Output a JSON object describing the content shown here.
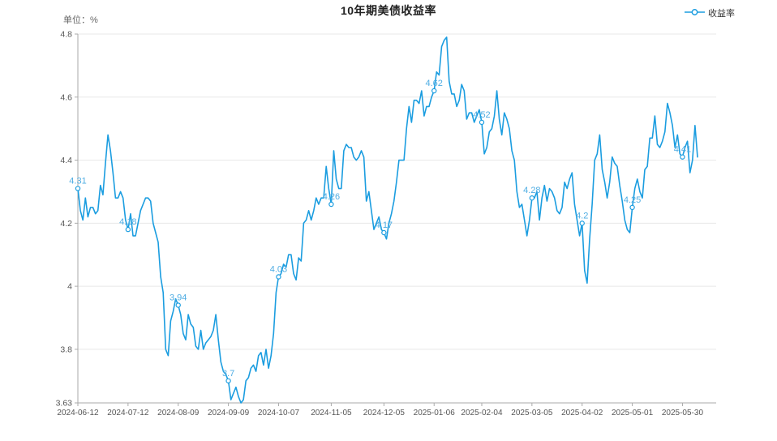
{
  "header": {
    "title": "10年期美债收益率",
    "unit_label": "单位：%",
    "legend": {
      "label": "收益率"
    }
  },
  "chart_data": {
    "type": "line",
    "title": "10年期美债收益率",
    "unit": "%",
    "series_name": "收益率",
    "line_color": "#1b9de0",
    "point_label_color": "#4fadе3",
    "label_color": "#4fade3",
    "axis_text_color": "#555555",
    "grid_color": "#e8e8e8",
    "axis_line_color": "#aaaaaa",
    "ylim": [
      3.63,
      4.8
    ],
    "y_ticks": [
      "3.63",
      "3.8",
      "4",
      "4.2",
      "4.4",
      "4.6",
      "4.8"
    ],
    "x_ticks": [
      "2024-06-12",
      "2024-07-12",
      "2024-08-09",
      "2024-09-09",
      "2024-10-07",
      "2024-11-05",
      "2024-12-05",
      "2025-01-06",
      "2025-02-04",
      "2025-03-05",
      "2025-04-02",
      "2025-05-01",
      "2025-05-30"
    ],
    "marked_points": [
      {
        "date": "2024-06-12",
        "label": "4.31",
        "value": 4.31
      },
      {
        "date": "2024-07-12",
        "label": "4.18",
        "value": 4.18
      },
      {
        "date": "2024-08-09",
        "label": "3.94",
        "value": 3.94
      },
      {
        "date": "2024-09-09",
        "label": "3.7",
        "value": 3.7
      },
      {
        "date": "2024-10-07",
        "label": "4.03",
        "value": 4.03
      },
      {
        "date": "2024-11-05",
        "label": "4.26",
        "value": 4.26
      },
      {
        "date": "2024-12-05",
        "label": "4.17",
        "value": 4.17
      },
      {
        "date": "2025-01-06",
        "label": "4.62",
        "value": 4.62
      },
      {
        "date": "2025-02-04",
        "label": "4.52",
        "value": 4.52
      },
      {
        "date": "2025-03-05",
        "label": "4.28",
        "value": 4.28
      },
      {
        "date": "2025-04-02",
        "label": "4.2",
        "value": 4.2
      },
      {
        "date": "2025-05-01",
        "label": "4.25",
        "value": 4.25
      },
      {
        "date": "2025-05-30",
        "label": "4.41",
        "value": 4.41
      }
    ],
    "points": [
      [
        "2024-06-12",
        4.31
      ],
      [
        "2024-06-13",
        4.24
      ],
      [
        "2024-06-14",
        4.21
      ],
      [
        "2024-06-17",
        4.28
      ],
      [
        "2024-06-18",
        4.22
      ],
      [
        "2024-06-20",
        4.25
      ],
      [
        "2024-06-21",
        4.25
      ],
      [
        "2024-06-24",
        4.23
      ],
      [
        "2024-06-25",
        4.24
      ],
      [
        "2024-06-26",
        4.32
      ],
      [
        "2024-06-27",
        4.29
      ],
      [
        "2024-06-28",
        4.39
      ],
      [
        "2024-07-01",
        4.48
      ],
      [
        "2024-07-02",
        4.43
      ],
      [
        "2024-07-03",
        4.36
      ],
      [
        "2024-07-05",
        4.28
      ],
      [
        "2024-07-08",
        4.28
      ],
      [
        "2024-07-09",
        4.3
      ],
      [
        "2024-07-10",
        4.28
      ],
      [
        "2024-07-11",
        4.21
      ],
      [
        "2024-07-12",
        4.18
      ],
      [
        "2024-07-15",
        4.23
      ],
      [
        "2024-07-16",
        4.16
      ],
      [
        "2024-07-17",
        4.16
      ],
      [
        "2024-07-18",
        4.2
      ],
      [
        "2024-07-19",
        4.24
      ],
      [
        "2024-07-22",
        4.26
      ],
      [
        "2024-07-23",
        4.28
      ],
      [
        "2024-07-24",
        4.28
      ],
      [
        "2024-07-25",
        4.27
      ],
      [
        "2024-07-26",
        4.2
      ],
      [
        "2024-07-29",
        4.17
      ],
      [
        "2024-07-30",
        4.14
      ],
      [
        "2024-07-31",
        4.03
      ],
      [
        "2024-08-01",
        3.98
      ],
      [
        "2024-08-02",
        3.8
      ],
      [
        "2024-08-05",
        3.78
      ],
      [
        "2024-08-06",
        3.89
      ],
      [
        "2024-08-07",
        3.92
      ],
      [
        "2024-08-08",
        3.96
      ],
      [
        "2024-08-09",
        3.94
      ],
      [
        "2024-08-12",
        3.91
      ],
      [
        "2024-08-13",
        3.85
      ],
      [
        "2024-08-14",
        3.83
      ],
      [
        "2024-08-15",
        3.91
      ],
      [
        "2024-08-16",
        3.88
      ],
      [
        "2024-08-19",
        3.87
      ],
      [
        "2024-08-20",
        3.81
      ],
      [
        "2024-08-21",
        3.8
      ],
      [
        "2024-08-22",
        3.86
      ],
      [
        "2024-08-23",
        3.8
      ],
      [
        "2024-08-26",
        3.82
      ],
      [
        "2024-08-27",
        3.83
      ],
      [
        "2024-08-28",
        3.84
      ],
      [
        "2024-08-29",
        3.86
      ],
      [
        "2024-08-30",
        3.91
      ],
      [
        "2024-09-03",
        3.83
      ],
      [
        "2024-09-04",
        3.76
      ],
      [
        "2024-09-05",
        3.73
      ],
      [
        "2024-09-06",
        3.72
      ],
      [
        "2024-09-09",
        3.7
      ],
      [
        "2024-09-10",
        3.64
      ],
      [
        "2024-09-11",
        3.66
      ],
      [
        "2024-09-12",
        3.68
      ],
      [
        "2024-09-13",
        3.65
      ],
      [
        "2024-09-16",
        3.63
      ],
      [
        "2024-09-17",
        3.64
      ],
      [
        "2024-09-18",
        3.7
      ],
      [
        "2024-09-19",
        3.71
      ],
      [
        "2024-09-20",
        3.74
      ],
      [
        "2024-09-23",
        3.75
      ],
      [
        "2024-09-24",
        3.73
      ],
      [
        "2024-09-25",
        3.78
      ],
      [
        "2024-09-26",
        3.79
      ],
      [
        "2024-09-27",
        3.75
      ],
      [
        "2024-09-30",
        3.8
      ],
      [
        "2024-10-01",
        3.74
      ],
      [
        "2024-10-02",
        3.78
      ],
      [
        "2024-10-03",
        3.85
      ],
      [
        "2024-10-04",
        3.98
      ],
      [
        "2024-10-07",
        4.03
      ],
      [
        "2024-10-08",
        4.04
      ],
      [
        "2024-10-09",
        4.07
      ],
      [
        "2024-10-10",
        4.06
      ],
      [
        "2024-10-11",
        4.1
      ],
      [
        "2024-10-14",
        4.1
      ],
      [
        "2024-10-15",
        4.04
      ],
      [
        "2024-10-16",
        4.02
      ],
      [
        "2024-10-17",
        4.09
      ],
      [
        "2024-10-18",
        4.08
      ],
      [
        "2024-10-21",
        4.2
      ],
      [
        "2024-10-22",
        4.21
      ],
      [
        "2024-10-23",
        4.24
      ],
      [
        "2024-10-24",
        4.21
      ],
      [
        "2024-10-25",
        4.24
      ],
      [
        "2024-10-28",
        4.28
      ],
      [
        "2024-10-29",
        4.26
      ],
      [
        "2024-10-30",
        4.28
      ],
      [
        "2024-10-31",
        4.28
      ],
      [
        "2024-11-01",
        4.38
      ],
      [
        "2024-11-04",
        4.31
      ],
      [
        "2024-11-05",
        4.26
      ],
      [
        "2024-11-06",
        4.43
      ],
      [
        "2024-11-07",
        4.34
      ],
      [
        "2024-11-08",
        4.31
      ],
      [
        "2024-11-11",
        4.31
      ],
      [
        "2024-11-12",
        4.43
      ],
      [
        "2024-11-13",
        4.45
      ],
      [
        "2024-11-14",
        4.44
      ],
      [
        "2024-11-15",
        4.44
      ],
      [
        "2024-11-18",
        4.41
      ],
      [
        "2024-11-19",
        4.4
      ],
      [
        "2024-11-20",
        4.41
      ],
      [
        "2024-11-21",
        4.43
      ],
      [
        "2024-11-22",
        4.41
      ],
      [
        "2024-11-25",
        4.27
      ],
      [
        "2024-11-26",
        4.3
      ],
      [
        "2024-11-27",
        4.24
      ],
      [
        "2024-11-29",
        4.18
      ],
      [
        "2024-12-02",
        4.2
      ],
      [
        "2024-12-03",
        4.22
      ],
      [
        "2024-12-04",
        4.18
      ],
      [
        "2024-12-05",
        4.17
      ],
      [
        "2024-12-06",
        4.15
      ],
      [
        "2024-12-09",
        4.2
      ],
      [
        "2024-12-10",
        4.23
      ],
      [
        "2024-12-11",
        4.27
      ],
      [
        "2024-12-12",
        4.33
      ],
      [
        "2024-12-13",
        4.4
      ],
      [
        "2024-12-16",
        4.4
      ],
      [
        "2024-12-17",
        4.4
      ],
      [
        "2024-12-18",
        4.5
      ],
      [
        "2024-12-19",
        4.57
      ],
      [
        "2024-12-20",
        4.52
      ],
      [
        "2024-12-23",
        4.59
      ],
      [
        "2024-12-24",
        4.59
      ],
      [
        "2024-12-26",
        4.58
      ],
      [
        "2024-12-27",
        4.62
      ],
      [
        "2024-12-30",
        4.54
      ],
      [
        "2024-12-31",
        4.57
      ],
      [
        "2025-01-02",
        4.57
      ],
      [
        "2025-01-03",
        4.6
      ],
      [
        "2025-01-06",
        4.62
      ],
      [
        "2025-01-07",
        4.68
      ],
      [
        "2025-01-08",
        4.67
      ],
      [
        "2025-01-10",
        4.76
      ],
      [
        "2025-01-13",
        4.78
      ],
      [
        "2025-01-14",
        4.79
      ],
      [
        "2025-01-15",
        4.65
      ],
      [
        "2025-01-16",
        4.61
      ],
      [
        "2025-01-17",
        4.61
      ],
      [
        "2025-01-21",
        4.57
      ],
      [
        "2025-01-22",
        4.59
      ],
      [
        "2025-01-23",
        4.64
      ],
      [
        "2025-01-24",
        4.62
      ],
      [
        "2025-01-27",
        4.53
      ],
      [
        "2025-01-28",
        4.55
      ],
      [
        "2025-01-29",
        4.55
      ],
      [
        "2025-01-30",
        4.52
      ],
      [
        "2025-01-31",
        4.54
      ],
      [
        "2025-02-03",
        4.56
      ],
      [
        "2025-02-04",
        4.52
      ],
      [
        "2025-02-05",
        4.42
      ],
      [
        "2025-02-06",
        4.44
      ],
      [
        "2025-02-07",
        4.49
      ],
      [
        "2025-02-10",
        4.5
      ],
      [
        "2025-02-11",
        4.54
      ],
      [
        "2025-02-12",
        4.62
      ],
      [
        "2025-02-13",
        4.53
      ],
      [
        "2025-02-14",
        4.48
      ],
      [
        "2025-02-18",
        4.55
      ],
      [
        "2025-02-19",
        4.53
      ],
      [
        "2025-02-20",
        4.5
      ],
      [
        "2025-02-21",
        4.43
      ],
      [
        "2025-02-24",
        4.4
      ],
      [
        "2025-02-25",
        4.3
      ],
      [
        "2025-02-26",
        4.25
      ],
      [
        "2025-02-27",
        4.26
      ],
      [
        "2025-02-28",
        4.21
      ],
      [
        "2025-03-03",
        4.16
      ],
      [
        "2025-03-04",
        4.21
      ],
      [
        "2025-03-05",
        4.28
      ],
      [
        "2025-03-06",
        4.28
      ],
      [
        "2025-03-07",
        4.3
      ],
      [
        "2025-03-10",
        4.21
      ],
      [
        "2025-03-11",
        4.28
      ],
      [
        "2025-03-12",
        4.32
      ],
      [
        "2025-03-13",
        4.27
      ],
      [
        "2025-03-14",
        4.31
      ],
      [
        "2025-03-17",
        4.3
      ],
      [
        "2025-03-18",
        4.28
      ],
      [
        "2025-03-19",
        4.24
      ],
      [
        "2025-03-20",
        4.23
      ],
      [
        "2025-03-21",
        4.25
      ],
      [
        "2025-03-24",
        4.33
      ],
      [
        "2025-03-25",
        4.31
      ],
      [
        "2025-03-26",
        4.34
      ],
      [
        "2025-03-27",
        4.36
      ],
      [
        "2025-03-28",
        4.26
      ],
      [
        "2025-03-31",
        4.21
      ],
      [
        "2025-04-01",
        4.16
      ],
      [
        "2025-04-02",
        4.2
      ],
      [
        "2025-04-03",
        4.05
      ],
      [
        "2025-04-04",
        4.01
      ],
      [
        "2025-04-07",
        4.15
      ],
      [
        "2025-04-08",
        4.26
      ],
      [
        "2025-04-09",
        4.4
      ],
      [
        "2025-04-10",
        4.42
      ],
      [
        "2025-04-11",
        4.48
      ],
      [
        "2025-04-14",
        4.37
      ],
      [
        "2025-04-15",
        4.33
      ],
      [
        "2025-04-16",
        4.28
      ],
      [
        "2025-04-17",
        4.33
      ],
      [
        "2025-04-21",
        4.41
      ],
      [
        "2025-04-22",
        4.39
      ],
      [
        "2025-04-23",
        4.38
      ],
      [
        "2025-04-24",
        4.32
      ],
      [
        "2025-04-25",
        4.27
      ],
      [
        "2025-04-28",
        4.21
      ],
      [
        "2025-04-29",
        4.18
      ],
      [
        "2025-04-30",
        4.17
      ],
      [
        "2025-05-01",
        4.25
      ],
      [
        "2025-05-02",
        4.31
      ],
      [
        "2025-05-05",
        4.34
      ],
      [
        "2025-05-06",
        4.3
      ],
      [
        "2025-05-07",
        4.28
      ],
      [
        "2025-05-08",
        4.37
      ],
      [
        "2025-05-09",
        4.38
      ],
      [
        "2025-05-12",
        4.47
      ],
      [
        "2025-05-13",
        4.47
      ],
      [
        "2025-05-14",
        4.54
      ],
      [
        "2025-05-15",
        4.45
      ],
      [
        "2025-05-16",
        4.44
      ],
      [
        "2025-05-19",
        4.46
      ],
      [
        "2025-05-20",
        4.49
      ],
      [
        "2025-05-21",
        4.58
      ],
      [
        "2025-05-22",
        4.55
      ],
      [
        "2025-05-23",
        4.51
      ],
      [
        "2025-05-27",
        4.44
      ],
      [
        "2025-05-28",
        4.48
      ],
      [
        "2025-05-29",
        4.42
      ],
      [
        "2025-05-30",
        4.41
      ],
      [
        "2025-06-02",
        4.44
      ],
      [
        "2025-06-03",
        4.46
      ],
      [
        "2025-06-04",
        4.36
      ],
      [
        "2025-06-05",
        4.4
      ],
      [
        "2025-06-06",
        4.51
      ],
      [
        "2025-06-09",
        4.41
      ]
    ]
  }
}
